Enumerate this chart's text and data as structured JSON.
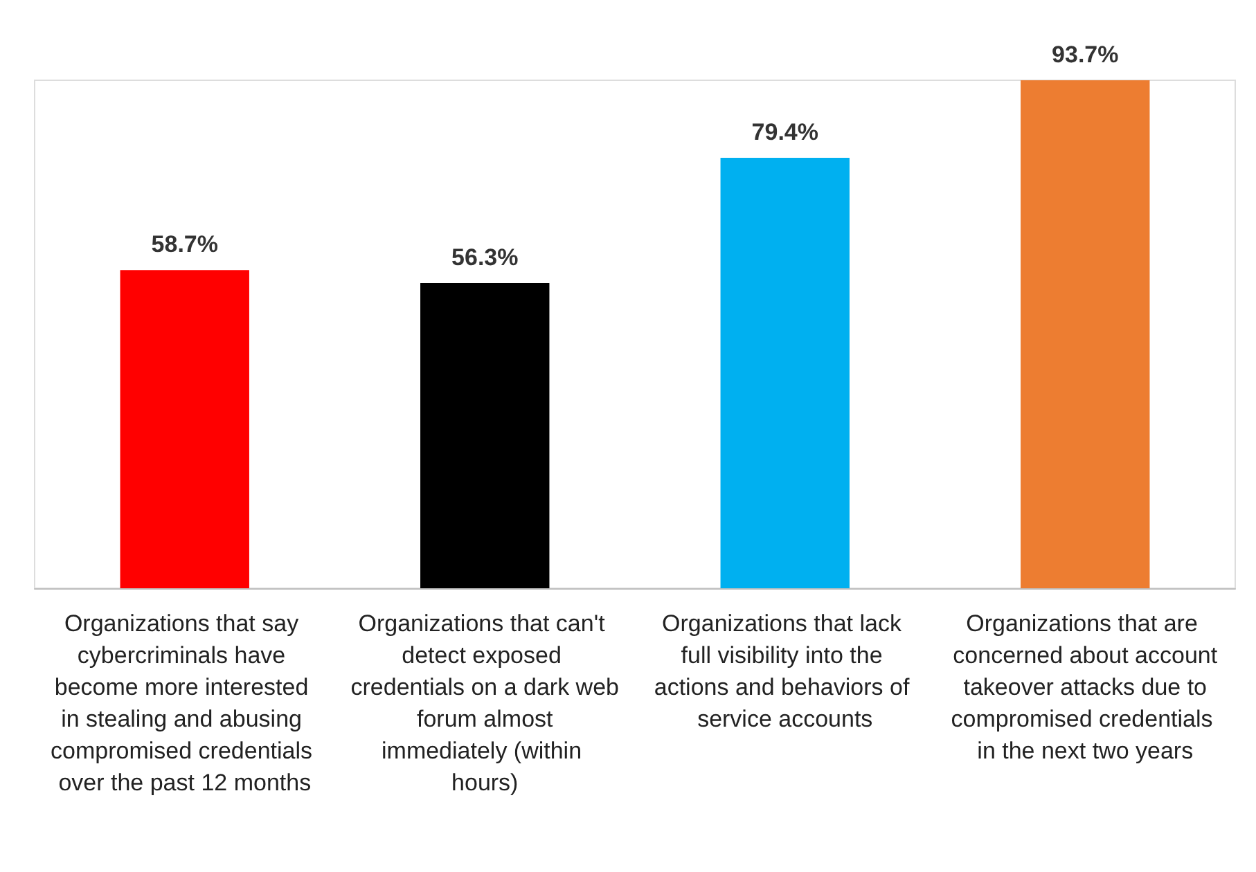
{
  "chart_data": {
    "type": "bar",
    "categories": [
      "Organizations that say cybercriminals have become more interested in stealing and abusing compromised credentials over the past 12 months",
      "Organizations that can't detect exposed credentials on a dark web forum almost immediately (within hours)",
      "Organizations that lack full visibility into the actions and behaviors of service accounts",
      "Organizations that are concerned about account takeover attacks due to compromised credentials in the next two years"
    ],
    "values": [
      58.7,
      56.3,
      79.4,
      93.7
    ],
    "colors": [
      "#ff0000",
      "#000000",
      "#00b0f0",
      "#ed7d31"
    ],
    "value_labels": [
      "58.7%",
      "56.3%",
      "79.4%",
      "93.7%"
    ]
  }
}
